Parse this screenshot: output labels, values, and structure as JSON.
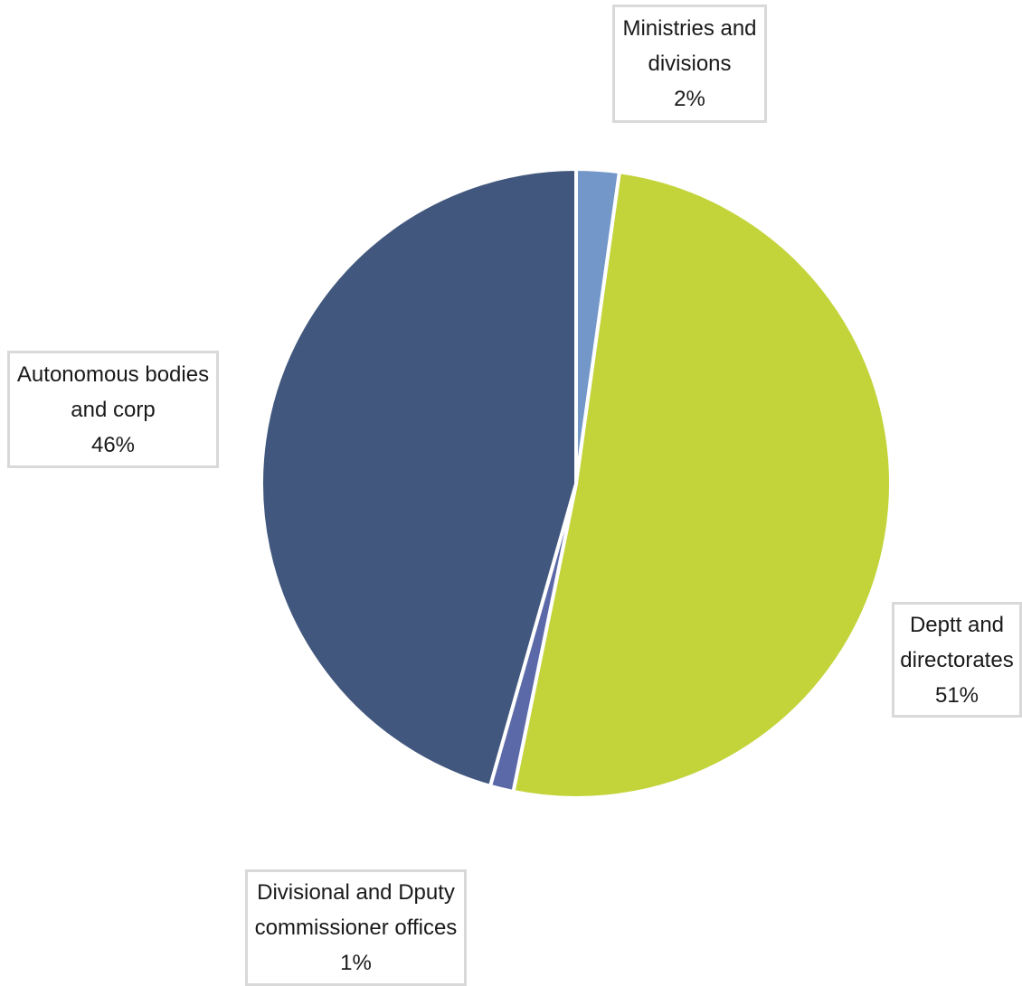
{
  "chart_data": {
    "type": "pie",
    "title": "",
    "slices": [
      {
        "label_line1": "Ministries and",
        "label_line2": "divisions",
        "pct_text": "2%",
        "value": 2.2,
        "color": "#7397c8"
      },
      {
        "label_line1": "Deptt and",
        "label_line2": "directorates",
        "pct_text": "51%",
        "value": 51.0,
        "color": "#c3d43b"
      },
      {
        "label_line1": "Divisional and Dputy",
        "label_line2": "commissioner offices",
        "pct_text": "1%",
        "value": 1.2,
        "color": "#5c69a8"
      },
      {
        "label_line1": "Autonomous bodies",
        "label_line2": "and corp",
        "pct_text": "46%",
        "value": 45.6,
        "color": "#41577d"
      }
    ],
    "start_angle_deg": 0,
    "direction": "clockwise",
    "legend": "none",
    "data_labels": "outside-boxed"
  }
}
